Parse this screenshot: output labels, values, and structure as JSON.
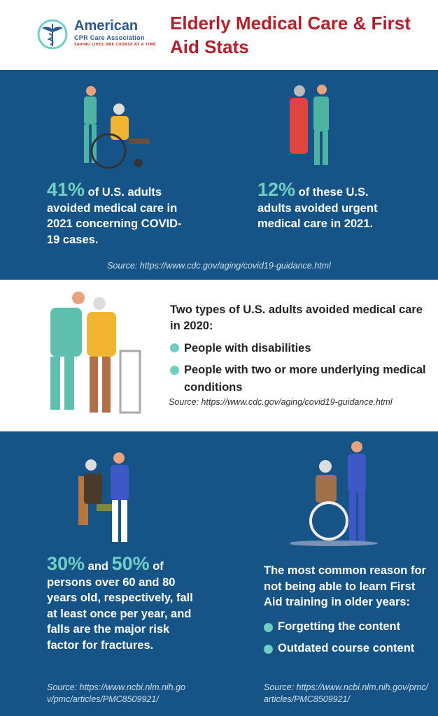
{
  "header": {
    "logo": {
      "name": "American",
      "subtitle": "CPR Care Association",
      "tagline": "SAVING LIVES ONE COURSE AT A TIME"
    },
    "title": "Elderly Medical Care & First Aid Stats"
  },
  "colors": {
    "primary_blue": "#165487",
    "accent_teal": "#6fcfc2",
    "title_red": "#b3202a"
  },
  "section1": {
    "stat_left": {
      "value": "41%",
      "text": "of U.S. adults avoided medical care in 2021 concerning COVID-19 cases."
    },
    "stat_right": {
      "value": "12%",
      "text": "of these U.S. adults avoided urgent medical care in 2021."
    },
    "source": "Source: https://www.cdc.gov/aging/covid19-guidance.html"
  },
  "section2": {
    "heading": "Two types of U.S. adults avoided medical care in 2020:",
    "bullets": [
      "People with disabilities",
      "People with two or more underlying medical conditions"
    ],
    "source": "Source: https://www.cdc.gov/aging/covid19-guidance.html"
  },
  "section3": {
    "stat_left": {
      "value1": "30%",
      "and": "and",
      "value2": "50%",
      "text_after": "of",
      "text": "persons over 60 and 80 years old, respectively, fall at least once per year, and falls are the major risk factor for fractures.",
      "source": "Source: https://www.ncbi.nlm.nih.gov/pmc/articles/PMC8509921/"
    },
    "stat_right": {
      "heading": "The most common reason for not being able to learn First Aid training in older years:",
      "bullets": [
        "Forgetting the content",
        "Outdated course content"
      ],
      "source": "Source: https://www.ncbi.nlm.nih.gov/pmc/articles/PMC8509921/"
    }
  }
}
